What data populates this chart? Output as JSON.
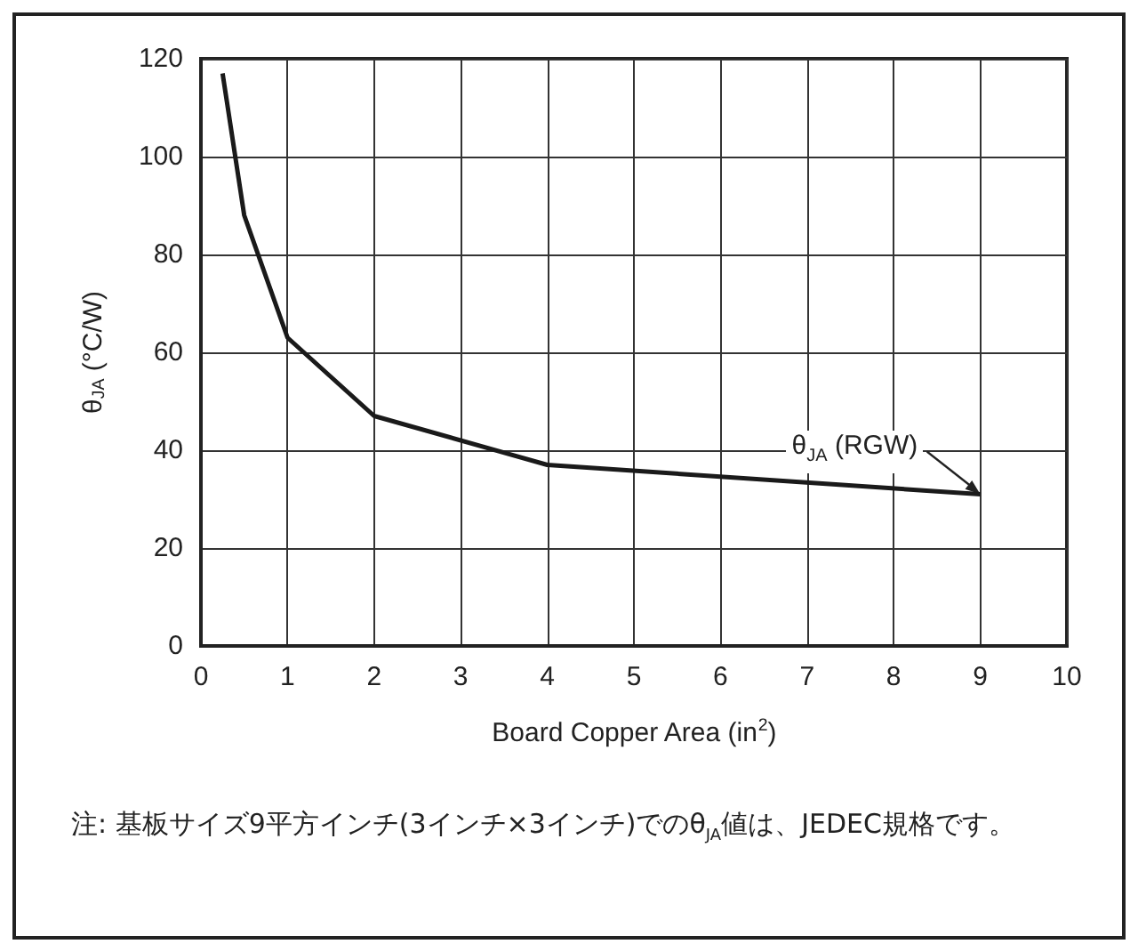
{
  "chart_data": {
    "type": "line",
    "xlabel": "Board Copper Area (in$^{2}$)",
    "ylabel": "θ$_{JA}$ (°C/W)",
    "x": [
      0.25,
      0.5,
      1,
      2,
      4,
      9
    ],
    "series": [
      {
        "color": "#1a1a1a",
        "values": [
          117,
          88,
          63,
          47,
          37,
          31
        ]
      }
    ],
    "xlim": [
      0,
      10
    ],
    "xticks": [
      0,
      1,
      2,
      3,
      4,
      5,
      6,
      7,
      8,
      9,
      10
    ],
    "ylim": [
      0,
      120
    ],
    "yticks": [
      0,
      20,
      40,
      60,
      80,
      100,
      120
    ],
    "grid": true,
    "marker": "none",
    "line_style": "solid",
    "annotations": [
      {
        "text": "θ$_{JA}$ (RGW)",
        "x": 9,
        "y": 31
      },
      "注: 基板サイズ9平方インチ(3インチ×3インチ)でのθ$_{JA}$値は、JEDEC規格です。"
    ]
  }
}
